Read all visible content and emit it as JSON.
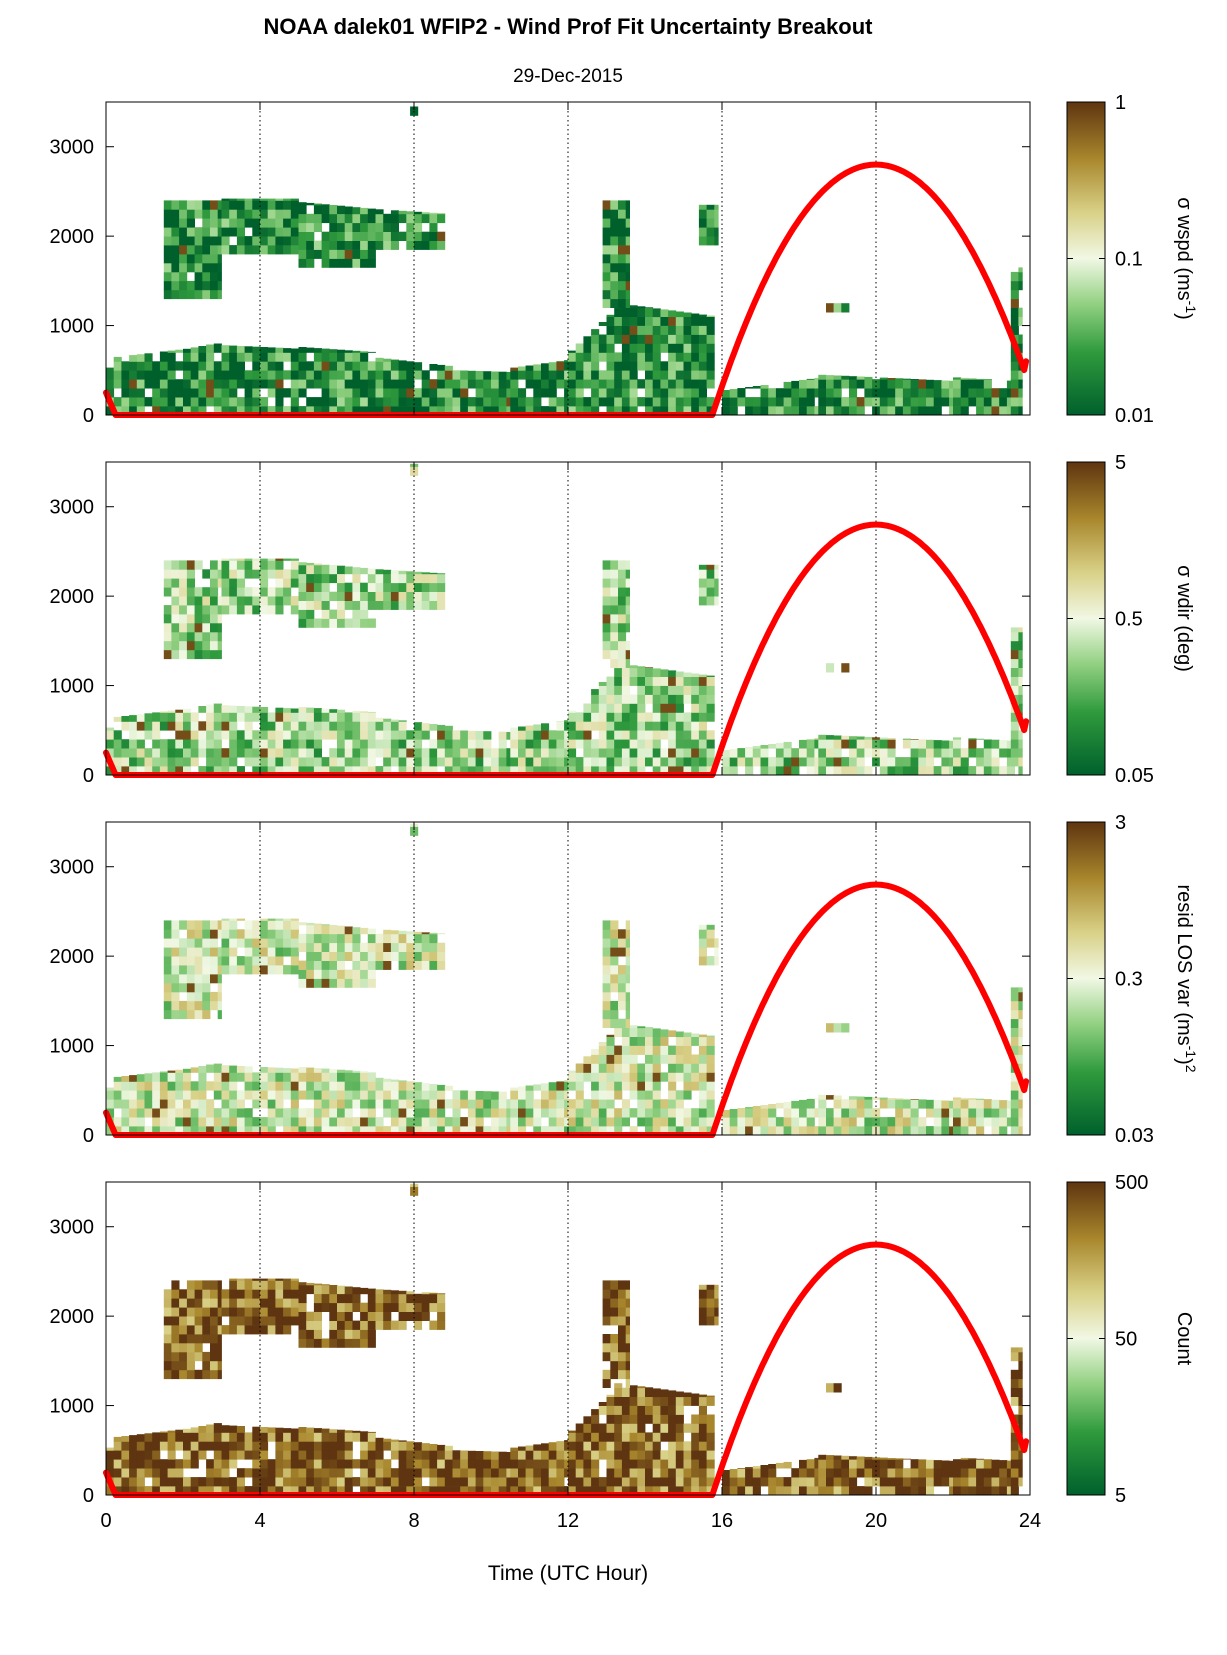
{
  "figure": {
    "title": "NOAA dalek01 WFIP2 - Wind Prof Fit Uncertainty Breakout",
    "subtitle": "29-Dec-2015",
    "xlabel": "Time (UTC Hour)"
  },
  "chart_data": [
    {
      "type": "heatmap",
      "colorbar_label": "σ wspd (ms",
      "colorbar_label_sup": "-1",
      "colorbar_label_tail": ")",
      "colorbar_scale": "log",
      "colorbar_ticks": [
        "0.01",
        "0.1",
        "1"
      ],
      "colormap": [
        "#00602c",
        "#2f9a3d",
        "#8fcf7f",
        "#f1f8e4",
        "#d8d086",
        "#a8862c",
        "#5e3510"
      ],
      "dominant_level": 0.1,
      "x": [
        0,
        4,
        8,
        12,
        16,
        20,
        24
      ],
      "xlim": [
        0,
        24
      ],
      "ylim": [
        0,
        3500
      ],
      "yticks": [
        0,
        1000,
        2000,
        3000
      ],
      "solar_elevation_curve": {
        "color": "#ff0000",
        "x": [
          0,
          0.25,
          15.75,
          20,
          24
        ],
        "y": [
          250,
          0,
          0,
          2800,
          600
        ]
      }
    },
    {
      "type": "heatmap",
      "colorbar_label": "σ wdir (deg)",
      "colorbar_label_sup": "",
      "colorbar_label_tail": "",
      "colorbar_scale": "log",
      "colorbar_ticks": [
        "0.05",
        "0.5",
        "5"
      ],
      "colormap": [
        "#00602c",
        "#2f9a3d",
        "#8fcf7f",
        "#f1f8e4",
        "#d8d086",
        "#a8862c",
        "#5e3510"
      ],
      "dominant_level": 0.35,
      "x": [
        0,
        4,
        8,
        12,
        16,
        20,
        24
      ],
      "xlim": [
        0,
        24
      ],
      "ylim": [
        0,
        3500
      ],
      "yticks": [
        0,
        1000,
        2000,
        3000
      ],
      "solar_elevation_curve": {
        "color": "#ff0000",
        "x": [
          0,
          0.25,
          15.75,
          20,
          24
        ],
        "y": [
          250,
          0,
          0,
          2800,
          600
        ]
      }
    },
    {
      "type": "heatmap",
      "colorbar_label": "resid LOS var (ms",
      "colorbar_label_sup": "-1",
      "colorbar_label_tail": ")",
      "colorbar_label_sup2": "2",
      "colorbar_scale": "log",
      "colorbar_ticks": [
        "0.03",
        "0.3",
        "3"
      ],
      "colormap": [
        "#00602c",
        "#2f9a3d",
        "#8fcf7f",
        "#f1f8e4",
        "#d8d086",
        "#a8862c",
        "#5e3510"
      ],
      "dominant_level": 0.45,
      "x": [
        0,
        4,
        8,
        12,
        16,
        20,
        24
      ],
      "xlim": [
        0,
        24
      ],
      "ylim": [
        0,
        3500
      ],
      "yticks": [
        0,
        1000,
        2000,
        3000
      ],
      "solar_elevation_curve": {
        "color": "#ff0000",
        "x": [
          0,
          0.25,
          15.75,
          20,
          24
        ],
        "y": [
          250,
          0,
          0,
          2800,
          600
        ]
      }
    },
    {
      "type": "heatmap",
      "colorbar_label": "Count",
      "colorbar_label_sup": "",
      "colorbar_label_tail": "",
      "colorbar_scale": "log",
      "colorbar_ticks": [
        "5",
        "50",
        "500"
      ],
      "colormap": [
        "#00602c",
        "#2f9a3d",
        "#8fcf7f",
        "#f1f8e4",
        "#d8d086",
        "#a8862c",
        "#5e3510"
      ],
      "dominant_level": 0.9,
      "x": [
        0,
        4,
        8,
        12,
        16,
        20,
        24
      ],
      "xlim": [
        0,
        24
      ],
      "ylim": [
        0,
        3500
      ],
      "yticks": [
        0,
        1000,
        2000,
        3000
      ],
      "solar_elevation_curve": {
        "color": "#ff0000",
        "x": [
          0,
          0.25,
          15.75,
          20,
          24
        ],
        "y": [
          250,
          0,
          0,
          2800,
          600
        ]
      }
    }
  ],
  "data_regions": [
    {
      "x0": 0.0,
      "x1": 0.2,
      "ybot": 0,
      "ytop": [
        530,
        530
      ]
    },
    {
      "x0": 0.2,
      "x1": 2.0,
      "ybot": 0,
      "ytop": [
        650,
        740
      ]
    },
    {
      "x0": 2.0,
      "x1": 3.0,
      "ybot": 0,
      "ytop": [
        740,
        820
      ]
    },
    {
      "x0": 3.0,
      "x1": 5.0,
      "ybot": 0,
      "ytop": [
        780,
        740
      ]
    },
    {
      "x0": 5.0,
      "x1": 7.0,
      "ybot": 0,
      "ytop": [
        760,
        700
      ]
    },
    {
      "x0": 7.0,
      "x1": 9.0,
      "ybot": 0,
      "ytop": [
        640,
        540
      ]
    },
    {
      "x0": 9.0,
      "x1": 10.5,
      "ybot": 0,
      "ytop": [
        500,
        480
      ]
    },
    {
      "x0": 10.5,
      "x1": 12.0,
      "ybot": 0,
      "ytop": [
        530,
        620
      ]
    },
    {
      "x0": 12.0,
      "x1": 13.2,
      "ybot": 0,
      "ytop": [
        720,
        1200
      ]
    },
    {
      "x0": 13.2,
      "x1": 15.8,
      "ybot": 0,
      "ytop": [
        1250,
        1100
      ]
    },
    {
      "x0": 12.9,
      "x1": 13.6,
      "ybot": 1200,
      "ytop": [
        2400,
        2400
      ]
    },
    {
      "x0": 15.4,
      "x1": 15.9,
      "ybot": 1900,
      "ytop": [
        2350,
        2350
      ]
    },
    {
      "x0": 1.5,
      "x1": 3.0,
      "ybot": 1300,
      "ytop": [
        2400,
        2400
      ]
    },
    {
      "x0": 3.0,
      "x1": 5.0,
      "ybot": 1800,
      "ytop": [
        2420,
        2420
      ]
    },
    {
      "x0": 5.0,
      "x1": 7.0,
      "ybot": 1650,
      "ytop": [
        2380,
        2300
      ]
    },
    {
      "x0": 7.0,
      "x1": 8.8,
      "ybot": 1850,
      "ytop": [
        2300,
        2250
      ]
    },
    {
      "x0": 7.9,
      "x1": 8.1,
      "ybot": 3350,
      "ytop": [
        3480,
        3480
      ]
    },
    {
      "x0": 16.0,
      "x1": 18.5,
      "ybot": 0,
      "ytop": [
        280,
        420
      ]
    },
    {
      "x0": 18.5,
      "x1": 22.0,
      "ybot": 0,
      "ytop": [
        450,
        380
      ]
    },
    {
      "x0": 22.0,
      "x1": 23.6,
      "ybot": 0,
      "ytop": [
        420,
        380
      ]
    },
    {
      "x0": 23.5,
      "x1": 23.8,
      "ybot": 0,
      "ytop": [
        1650,
        1650
      ]
    },
    {
      "x0": 18.7,
      "x1": 19.3,
      "ybot": 1150,
      "ytop": [
        1250,
        1250
      ]
    }
  ]
}
